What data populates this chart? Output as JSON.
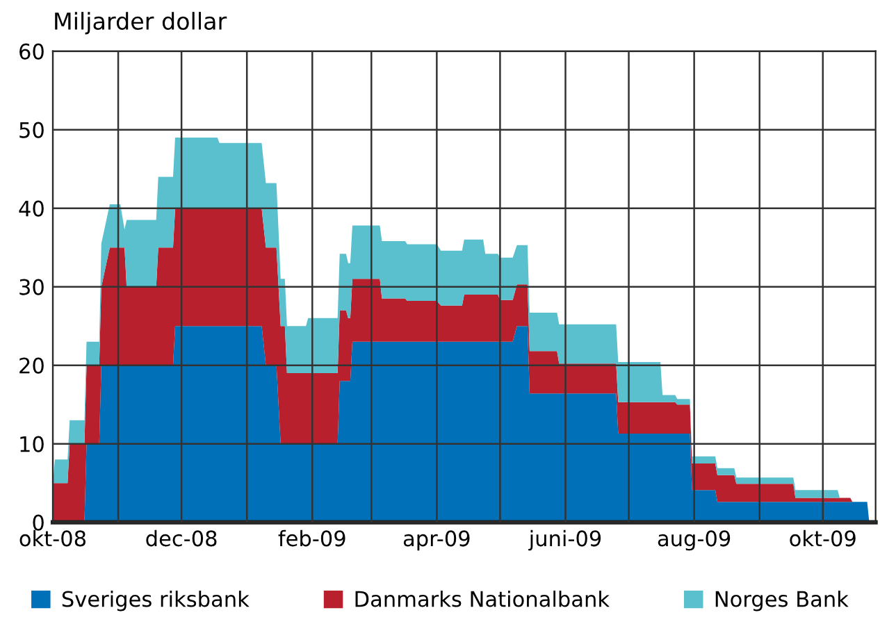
{
  "chart_data": {
    "type": "area",
    "stacked": true,
    "ylabel": "Miljarder dollar",
    "x": [
      "2008-10-01",
      "2008-10-02",
      "2008-10-08",
      "2008-10-09",
      "2008-10-16",
      "2008-10-17",
      "2008-10-23",
      "2008-10-24",
      "2008-10-28",
      "2008-11-02",
      "2008-11-04",
      "2008-11-05",
      "2008-11-19",
      "2008-11-20",
      "2008-11-27",
      "2008-11-28",
      "2008-12-18",
      "2008-12-19",
      "2009-01-08",
      "2009-01-10",
      "2009-01-15",
      "2009-01-17",
      "2009-01-19",
      "2009-01-20",
      "2009-01-29",
      "2009-01-30",
      "2009-02-13",
      "2009-02-14",
      "2009-02-17",
      "2009-02-18",
      "2009-02-19",
      "2009-02-20",
      "2009-03-05",
      "2009-03-06",
      "2009-03-17",
      "2009-03-18",
      "2009-04-01",
      "2009-04-03",
      "2009-04-13",
      "2009-04-14",
      "2009-04-23",
      "2009-04-24",
      "2009-04-30",
      "2009-05-01",
      "2009-05-07",
      "2009-05-09",
      "2009-05-14",
      "2009-05-15",
      "2009-05-28",
      "2009-05-29",
      "2009-06-25",
      "2009-06-26",
      "2009-07-16",
      "2009-07-17",
      "2009-07-23",
      "2009-07-24",
      "2009-07-30",
      "2009-07-31",
      "2009-08-11",
      "2009-08-12",
      "2009-08-20",
      "2009-08-21",
      "2009-09-17",
      "2009-09-18",
      "2009-10-08",
      "2009-10-09",
      "2009-10-14",
      "2009-10-15",
      "2009-10-22",
      "2009-10-23"
    ],
    "series": [
      {
        "name": "Sveriges riksbank",
        "color": "#0070b8",
        "values": [
          0,
          0,
          0,
          0,
          0,
          10,
          10,
          20,
          20,
          20,
          20,
          20,
          20,
          20,
          20,
          25,
          25,
          25,
          25,
          20,
          20,
          10,
          10,
          10,
          10,
          10,
          10,
          18,
          18,
          18,
          18,
          23,
          23,
          23,
          23,
          23,
          23,
          23,
          23,
          23,
          23,
          23,
          23,
          23,
          23,
          25,
          25,
          16.4,
          16.4,
          16.4,
          16.4,
          11.3,
          11.3,
          11.3,
          11.3,
          11.3,
          11.3,
          4.1,
          4.1,
          2.6,
          2.6,
          2.6,
          2.6,
          2.6,
          2.6,
          2.6,
          2.6,
          2.6,
          2.6,
          0
        ]
      },
      {
        "name": "Danmarks Nationalbank",
        "color": "#b8202e",
        "values": [
          5,
          5,
          5,
          10,
          10,
          10,
          10,
          10,
          15,
          15,
          15,
          10,
          10,
          15,
          15,
          15,
          15,
          15,
          15,
          15,
          15,
          15,
          15,
          9,
          9,
          9,
          9,
          9,
          9,
          8,
          8,
          8,
          8,
          5.5,
          5.5,
          5.2,
          5.2,
          4.6,
          4.6,
          6,
          6,
          6,
          6,
          5.3,
          5.3,
          5.3,
          5.3,
          5.4,
          5.4,
          3.8,
          3.8,
          4,
          4,
          4,
          4,
          3.7,
          3.7,
          3.4,
          3.4,
          3.4,
          3.4,
          2.3,
          2.3,
          0.5,
          0.5,
          0.5,
          0.5,
          0,
          0,
          0
        ]
      },
      {
        "name": "Norges Bank",
        "color": "#5bc0ce",
        "values": [
          0,
          3,
          3,
          3,
          3,
          3,
          3,
          5.5,
          5.5,
          5.5,
          2.3,
          8.5,
          8.5,
          9,
          9,
          9,
          9,
          8.3,
          8.3,
          8.2,
          8.2,
          6,
          6,
          6,
          6,
          7,
          7,
          7.2,
          7.2,
          7,
          7,
          6.8,
          6.8,
          7.3,
          7.3,
          7.2,
          7.2,
          7,
          7,
          7,
          7,
          5.2,
          5.2,
          5.4,
          5.4,
          5,
          5,
          4.9,
          4.9,
          5,
          5,
          5.1,
          5.1,
          0.9,
          0.9,
          0.7,
          0.7,
          0.9,
          0.9,
          0.9,
          0.9,
          0.8,
          0.8,
          1,
          1,
          0,
          0,
          0,
          0,
          0
        ]
      }
    ],
    "xlim": [
      "2008-10-01",
      "2009-10-26"
    ],
    "xticks": [
      {
        "value": "2008-10-01",
        "label": "okt-08"
      },
      {
        "value": "2008-11-01",
        "label": null
      },
      {
        "value": "2008-12-01",
        "label": "dec-08"
      },
      {
        "value": "2009-01-01",
        "label": null
      },
      {
        "value": "2009-02-01",
        "label": "feb-09"
      },
      {
        "value": "2009-03-01",
        "label": null
      },
      {
        "value": "2009-04-01",
        "label": "apr-09"
      },
      {
        "value": "2009-05-01",
        "label": null
      },
      {
        "value": "2009-06-01",
        "label": "juni-09"
      },
      {
        "value": "2009-07-01",
        "label": null
      },
      {
        "value": "2009-08-01",
        "label": "aug-09"
      },
      {
        "value": "2009-09-01",
        "label": null
      },
      {
        "value": "2009-10-01",
        "label": "okt-09"
      }
    ],
    "ylim": [
      0,
      60
    ],
    "yticks": [
      0,
      10,
      20,
      30,
      40,
      50,
      60
    ],
    "grid": true,
    "legend": "bottom"
  }
}
